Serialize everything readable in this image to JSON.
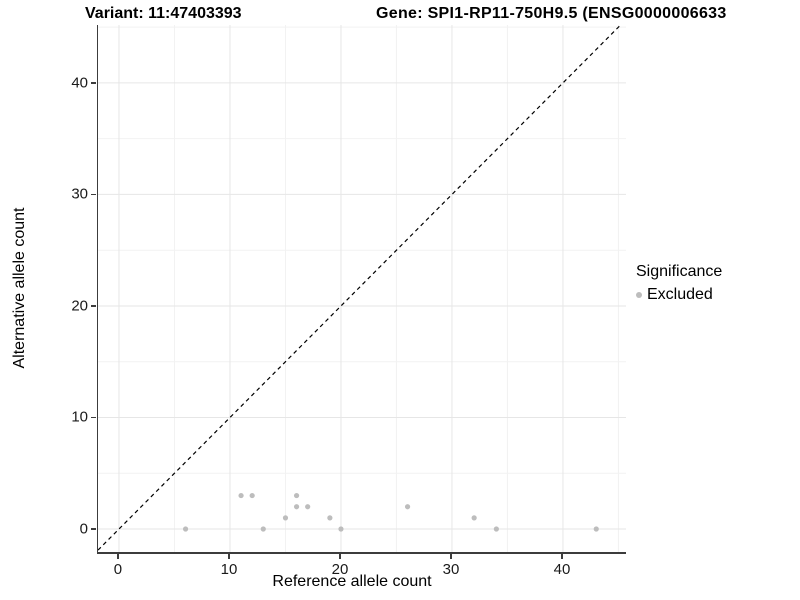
{
  "header": {
    "variant_title": "Variant: 11:47403393",
    "gene_title": "Gene: SPI1-RP11-750H9.5 (ENSG0000006633"
  },
  "chart_data": {
    "type": "scatter",
    "xlabel": "Reference allele count",
    "ylabel": "Alternative allele count",
    "xlim": [
      -1.89,
      45.68
    ],
    "ylim": [
      -2.06,
      45.19
    ],
    "x_major_ticks": [
      0,
      10,
      20,
      30,
      40
    ],
    "y_major_ticks": [
      0,
      10,
      20,
      30,
      40
    ],
    "x_minor_ticks": [
      5,
      15,
      25,
      35,
      45
    ],
    "y_minor_ticks": [
      5,
      15,
      25,
      35,
      45
    ],
    "grid": true,
    "identity_line": {
      "type": "abline",
      "slope": 1,
      "intercept": 0,
      "style": "dashed",
      "color": "#000000"
    },
    "series": [
      {
        "name": "Excluded",
        "color": "#bdbdbd",
        "marker": "circle",
        "points": [
          [
            6,
            0
          ],
          [
            11,
            3
          ],
          [
            12,
            3
          ],
          [
            13,
            0
          ],
          [
            15,
            1
          ],
          [
            16,
            2
          ],
          [
            16,
            3
          ],
          [
            17,
            2
          ],
          [
            19,
            1
          ],
          [
            20,
            0
          ],
          [
            26,
            2
          ],
          [
            32,
            1
          ],
          [
            34,
            0
          ],
          [
            43,
            0
          ]
        ]
      }
    ],
    "legend": {
      "title": "Significance",
      "position": "right",
      "entries": [
        {
          "label": "Excluded",
          "color": "#bdbdbd"
        }
      ]
    }
  },
  "colors": {
    "background": "#ffffff",
    "axis_line": "#3c3c3c",
    "tick_label": "#1a1a1a",
    "grid_major": "#e6e6e6",
    "grid_minor": "#f2f2f2",
    "title_text": "#000000"
  }
}
